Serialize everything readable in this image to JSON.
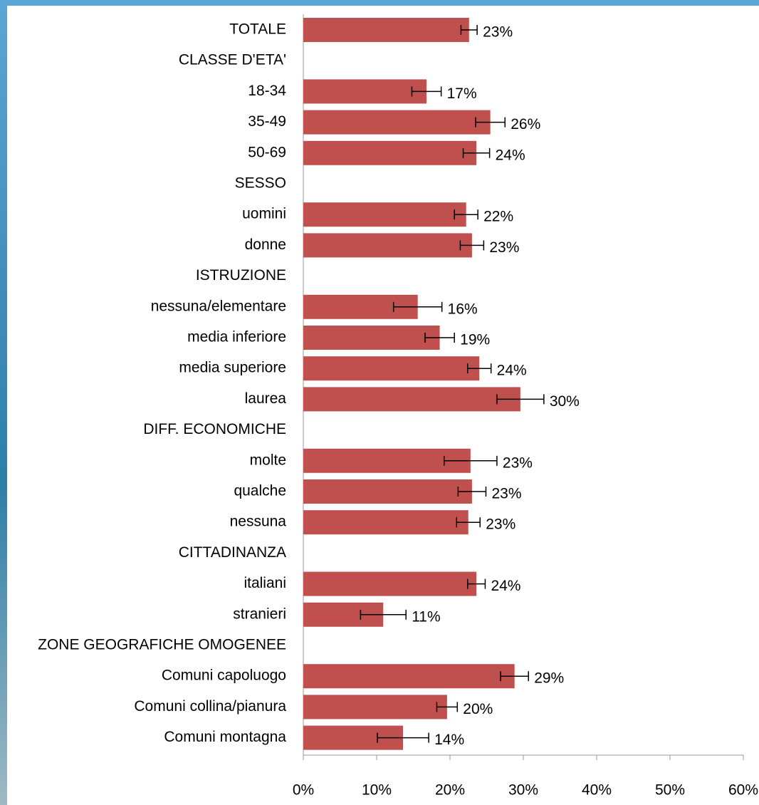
{
  "chart_data": {
    "type": "bar",
    "orientation": "horizontal",
    "categories": [
      "TOTALE",
      "CLASSE D'ETA'",
      "18-34",
      "35-49",
      "50-69",
      "SESSO",
      "uomini",
      "donne",
      "ISTRUZIONE",
      "nessuna/elementare",
      "media inferiore",
      "media superiore",
      "laurea",
      "DIFF. ECONOMICHE",
      "molte",
      "qualche",
      "nessuna",
      "CITTADINANZA",
      "italiani",
      "stranieri",
      "ZONE GEOGRAFICHE OMOGENEE",
      "Comuni capoluogo",
      "Comuni collina/pianura",
      "Comuni montagna"
    ],
    "values": [
      22.6,
      null,
      16.8,
      25.5,
      23.6,
      null,
      22.2,
      23.0,
      null,
      15.6,
      18.6,
      24.0,
      29.6,
      null,
      22.8,
      23.0,
      22.5,
      null,
      23.6,
      10.9,
      null,
      28.8,
      19.6,
      13.6
    ],
    "errors": [
      1.1,
      null,
      2.0,
      2.0,
      1.8,
      null,
      1.6,
      1.6,
      null,
      3.3,
      2.0,
      1.6,
      3.2,
      null,
      3.6,
      1.9,
      1.6,
      null,
      1.2,
      3.1,
      null,
      1.9,
      1.4,
      3.5
    ],
    "value_labels": [
      "23%",
      null,
      "17%",
      "26%",
      "24%",
      null,
      "22%",
      "23%",
      null,
      "16%",
      "19%",
      "24%",
      "30%",
      null,
      "23%",
      "23%",
      "23%",
      null,
      "24%",
      "11%",
      null,
      "29%",
      "20%",
      "14%"
    ],
    "color": "#c0504d",
    "xlim": [
      0,
      60
    ],
    "xticks": [
      {
        "value": 0,
        "label": "0%"
      },
      {
        "value": 10,
        "label": "10%"
      },
      {
        "value": 20,
        "label": "20%"
      },
      {
        "value": 30,
        "label": "30%"
      },
      {
        "value": 40,
        "label": "40%"
      },
      {
        "value": 50,
        "label": "50%"
      },
      {
        "value": 60,
        "label": "60%"
      }
    ]
  }
}
